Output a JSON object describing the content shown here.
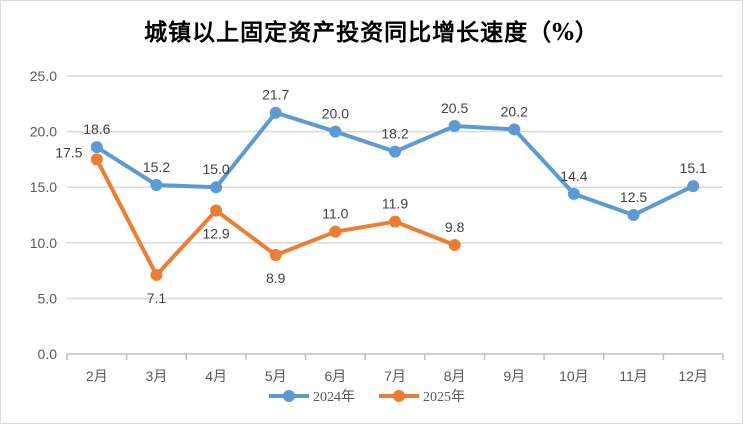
{
  "chart_data": {
    "type": "line",
    "title": "城镇以上固定资产投资同比增长速度（%）",
    "categories": [
      "2月",
      "3月",
      "4月",
      "5月",
      "6月",
      "7月",
      "8月",
      "9月",
      "10月",
      "11月",
      "12月"
    ],
    "series": [
      {
        "name": "2024年",
        "color": "#5B9BD5",
        "values": [
          18.6,
          15.2,
          15.0,
          21.7,
          20.0,
          18.2,
          20.5,
          20.2,
          14.4,
          12.5,
          15.1
        ]
      },
      {
        "name": "2025年",
        "color": "#ED7D31",
        "values": [
          17.5,
          7.1,
          12.9,
          8.9,
          11.0,
          11.9,
          9.8,
          null,
          null,
          null,
          null
        ]
      }
    ],
    "yticks": [
      "0.0",
      "5.0",
      "10.0",
      "15.0",
      "20.0",
      "25.0"
    ],
    "ylim": [
      0,
      25
    ],
    "xlabel": "",
    "ylabel": "",
    "grid": true,
    "legend": "bottom"
  }
}
